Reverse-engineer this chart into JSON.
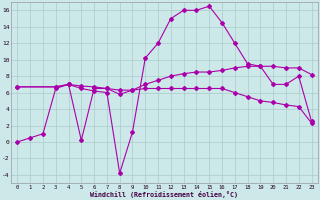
{
  "background_color": "#cce8e8",
  "grid_color": "#aacccc",
  "line_color": "#aa00aa",
  "xlabel": "Windchill (Refroidissement éolien,°C)",
  "xlim": [
    -0.5,
    23.5
  ],
  "ylim": [
    -5,
    17
  ],
  "yticks": [
    -4,
    -2,
    0,
    2,
    4,
    6,
    8,
    10,
    12,
    14,
    16
  ],
  "xticks": [
    0,
    1,
    2,
    3,
    4,
    5,
    6,
    7,
    8,
    9,
    10,
    11,
    12,
    13,
    14,
    15,
    16,
    17,
    18,
    19,
    20,
    21,
    22,
    23
  ],
  "lines": [
    {
      "x": [
        0,
        1,
        2,
        3,
        4,
        5,
        6,
        7,
        8,
        9,
        10,
        11,
        12,
        13,
        14,
        15,
        16,
        17,
        18,
        19,
        20,
        21,
        22,
        23
      ],
      "y": [
        0.0,
        0.5,
        1.0,
        6.5,
        7.0,
        6.5,
        6.2,
        6.0,
        -3.8,
        1.2,
        10.2,
        12.0,
        15.0,
        16.0,
        16.0,
        16.5,
        14.5,
        12.0,
        9.5,
        9.2,
        7.0,
        7.0,
        8.0,
        2.5
      ]
    },
    {
      "x": [
        0,
        3,
        4,
        5,
        6,
        7,
        8,
        9,
        10,
        11,
        12,
        13,
        14,
        15,
        16,
        17,
        18,
        19,
        20,
        21,
        22,
        23
      ],
      "y": [
        6.7,
        6.7,
        7.0,
        6.8,
        6.7,
        6.5,
        6.3,
        6.3,
        7.0,
        7.5,
        8.0,
        8.3,
        8.5,
        8.5,
        8.7,
        9.0,
        9.2,
        9.2,
        9.2,
        9.0,
        9.0,
        8.2
      ]
    },
    {
      "x": [
        0,
        3,
        4,
        5,
        6,
        7,
        8,
        9,
        10,
        11,
        12,
        13,
        14,
        15,
        16,
        17,
        18,
        19,
        20,
        21,
        22,
        23
      ],
      "y": [
        6.7,
        6.7,
        7.0,
        0.2,
        6.5,
        6.5,
        5.8,
        6.3,
        6.5,
        6.5,
        6.5,
        6.5,
        6.5,
        6.5,
        6.5,
        6.0,
        5.5,
        5.0,
        4.8,
        4.5,
        4.3,
        2.3
      ]
    }
  ]
}
